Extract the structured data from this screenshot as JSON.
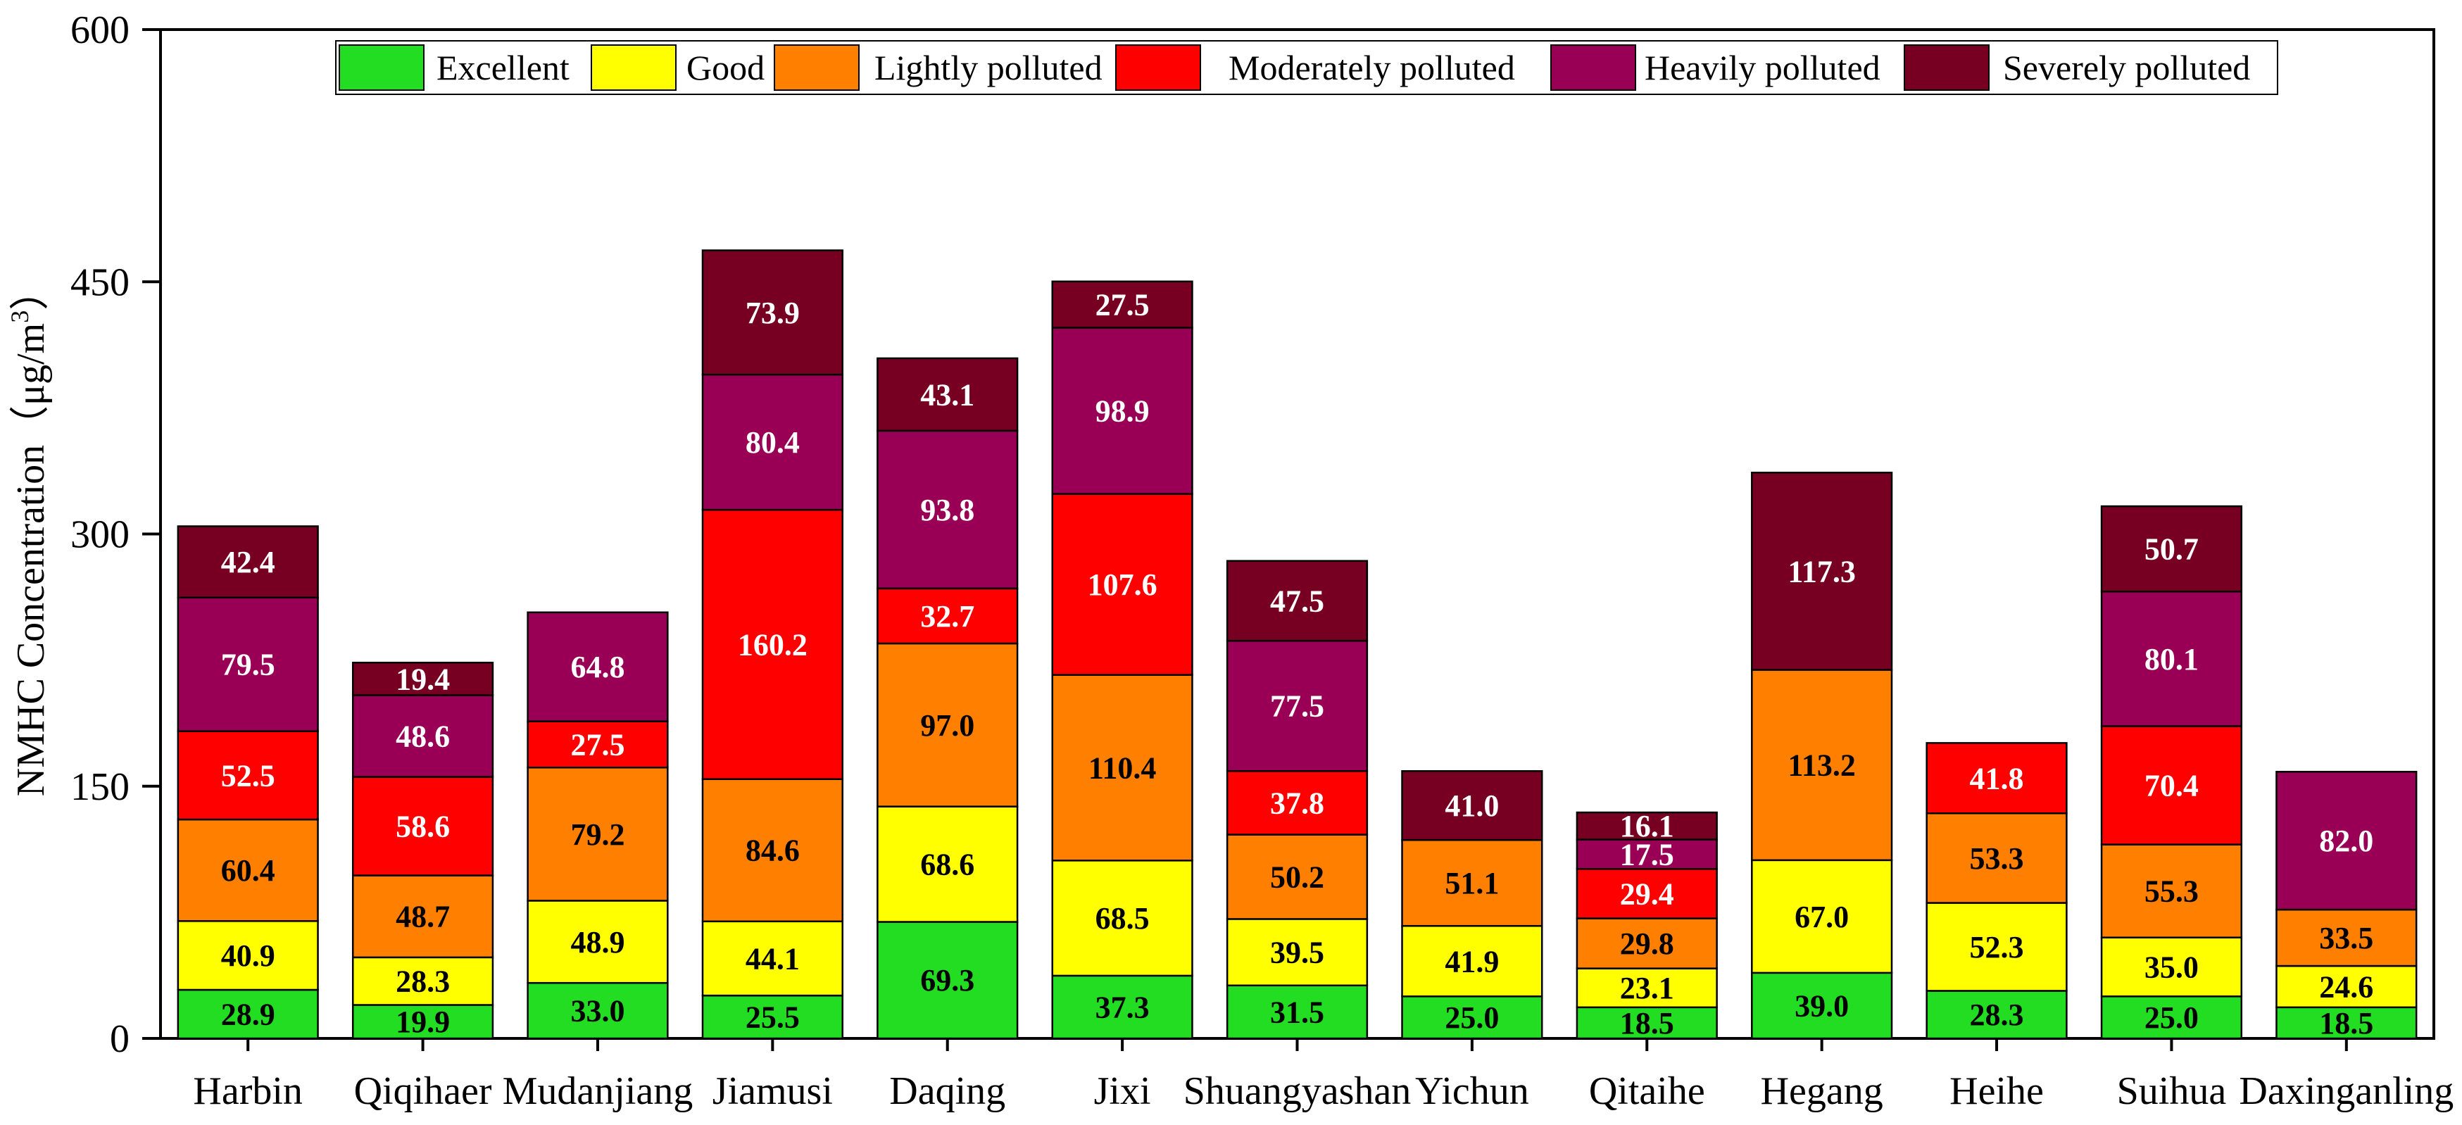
{
  "chart_data": {
    "type": "stacked-bar",
    "ylabel_main": "NMHC Concentration（μg/m",
    "ylabel_sup": "3",
    "ylabel_close": "）",
    "ylim": [
      0,
      600
    ],
    "yticks": [
      0,
      150,
      300,
      450,
      600
    ],
    "grid": false,
    "legend_position": "top-center",
    "categories": [
      "Harbin",
      "Qiqihaer",
      "Mudanjiang",
      "Jiamusi",
      "Daqing",
      "Jixi",
      "Shuangyashan",
      "Yichun",
      "Qitaihe",
      "Hegang",
      "Heihe",
      "Suihua",
      "Daxinganling"
    ],
    "series": [
      {
        "name": "Excellent",
        "color": "#22dd22",
        "label_color": "#000000",
        "values": [
          28.9,
          19.9,
          33.0,
          25.5,
          69.3,
          37.3,
          31.5,
          25.0,
          18.5,
          39.0,
          28.3,
          25.0,
          18.5
        ],
        "labels": [
          "28.9",
          "19.9",
          "33.0",
          "25.5",
          "69.3",
          "37.3",
          "31.5",
          "25.0",
          "18.5",
          "39.0",
          "28.3",
          "25.0",
          "18.5"
        ]
      },
      {
        "name": "Good",
        "color": "#ffff00",
        "label_color": "#000000",
        "values": [
          40.9,
          28.3,
          48.9,
          44.1,
          68.6,
          68.5,
          39.5,
          41.9,
          23.1,
          67.0,
          52.3,
          35.0,
          24.6
        ],
        "labels": [
          "40.9",
          "28.3",
          "48.9",
          "44.1",
          "68.6",
          "68.5",
          "39.5",
          "41.9",
          "23.1",
          "67.0",
          "52.3",
          "35.0",
          "24.6"
        ]
      },
      {
        "name": "Lightly polluted",
        "color": "#ff8000",
        "label_color": "#000000",
        "values": [
          60.4,
          48.7,
          79.2,
          84.6,
          97.0,
          110.4,
          50.2,
          51.1,
          29.8,
          113.2,
          53.3,
          55.3,
          33.5
        ],
        "labels": [
          "60.4",
          "48.7",
          "79.2",
          "84.6",
          "97.0",
          "110.4",
          "50.2",
          "51.1",
          "29.8",
          "113.2",
          "53.3",
          "55.3",
          "33.5"
        ]
      },
      {
        "name": "Moderately polluted",
        "color": "#ff0000",
        "label_color": "#ffffff",
        "values": [
          52.5,
          58.6,
          27.5,
          160.2,
          32.7,
          107.6,
          37.8,
          0,
          29.4,
          0,
          41.8,
          70.4,
          0
        ],
        "labels": [
          "52.5",
          "58.6",
          "27.5",
          "160.2",
          "32.7",
          "107.6",
          "37.8",
          "",
          "29.4",
          "",
          "41.8",
          "70.4",
          ""
        ]
      },
      {
        "name": "Heavily polluted",
        "color": "#990055",
        "label_color": "#ffffff",
        "values": [
          79.5,
          48.6,
          64.8,
          80.4,
          93.8,
          98.9,
          77.5,
          0,
          17.5,
          0,
          0,
          80.1,
          82.0
        ],
        "labels": [
          "79.5",
          "48.6",
          "64.8",
          "80.4",
          "93.8",
          "98.9",
          "77.5",
          "",
          "17.5",
          "",
          "",
          "80.1",
          "82.0"
        ]
      },
      {
        "name": "Severely polluted",
        "color": "#770022",
        "label_color": "#ffffff",
        "values": [
          42.4,
          19.4,
          0,
          73.9,
          43.1,
          27.5,
          47.5,
          41.0,
          16.1,
          117.3,
          0,
          50.7,
          0
        ],
        "labels": [
          "42.4",
          "19.4",
          "",
          "73.9",
          "43.1",
          "27.5",
          "47.5",
          "41.0",
          "16.1",
          "117.3",
          "",
          "50.7",
          ""
        ]
      }
    ]
  }
}
